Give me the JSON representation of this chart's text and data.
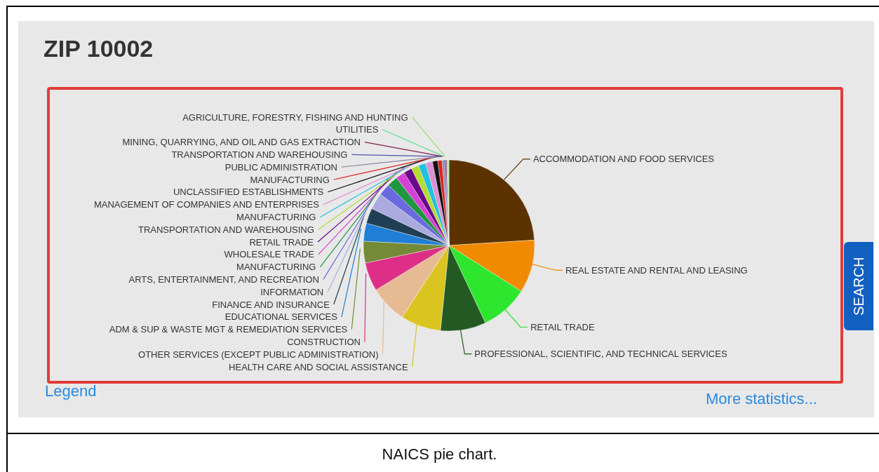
{
  "chart_data": {
    "type": "pie",
    "title": "ZIP 10002",
    "categories": [
      "ACCOMMODATION AND FOOD SERVICES",
      "REAL ESTATE AND RENTAL AND LEASING",
      "RETAIL TRADE",
      "PROFESSIONAL, SCIENTIFIC, AND TECHNICAL SERVICES",
      "HEALTH CARE AND SOCIAL ASSISTANCE",
      "OTHER SERVICES (EXCEPT PUBLIC ADMINISTRATION)",
      "CONSTRUCTION",
      "ADM & SUP & WASTE MGT & REMEDIATION SERVICES",
      "EDUCATIONAL SERVICES",
      "FINANCE AND INSURANCE",
      "INFORMATION",
      "ARTS, ENTERTAINMENT, AND RECREATION",
      "MANUFACTURING",
      "WHOLESALE TRADE",
      "RETAIL TRADE",
      "TRANSPORTATION AND WAREHOUSING",
      "MANUFACTURING",
      "MANAGEMENT OF COMPANIES AND ENTERPRISES",
      "UNCLASSIFIED ESTABLISHMENTS",
      "MANUFACTURING",
      "PUBLIC ADMINISTRATION",
      "TRANSPORTATION AND WAREHOUSING",
      "MINING, QUARRYING, AND OIL AND GAS EXTRACTION",
      "UTILITIES",
      "AGRICULTURE, FORESTRY, FISHING AND HUNTING"
    ],
    "values": [
      24.0,
      10.0,
      9.0,
      8.6,
      7.6,
      7.1,
      5.4,
      4.1,
      3.4,
      2.9,
      3.1,
      2.3,
      2.0,
      1.7,
      1.6,
      1.4,
      1.4,
      1.3,
      1.0,
      0.8,
      0.4,
      0.3,
      0.2,
      0.2,
      0.2
    ],
    "colors": [
      "#5c3300",
      "#f08a00",
      "#2ee62e",
      "#235a23",
      "#d9c420",
      "#e6bb94",
      "#dd2f88",
      "#748a36",
      "#1f7fd6",
      "#1f3f55",
      "#aaaade",
      "#6a6adf",
      "#20963f",
      "#d440d4",
      "#6a0a8a",
      "#b6dc32",
      "#22c0e0",
      "#dd90d0",
      "#111111",
      "#e02020",
      "#8a8aa0",
      "#5050b0",
      "#802050",
      "#50e090",
      "#a0e080"
    ],
    "annotations": [
      "Legend",
      "More statistics...",
      "SEARCH",
      "NAICS pie chart."
    ]
  }
}
